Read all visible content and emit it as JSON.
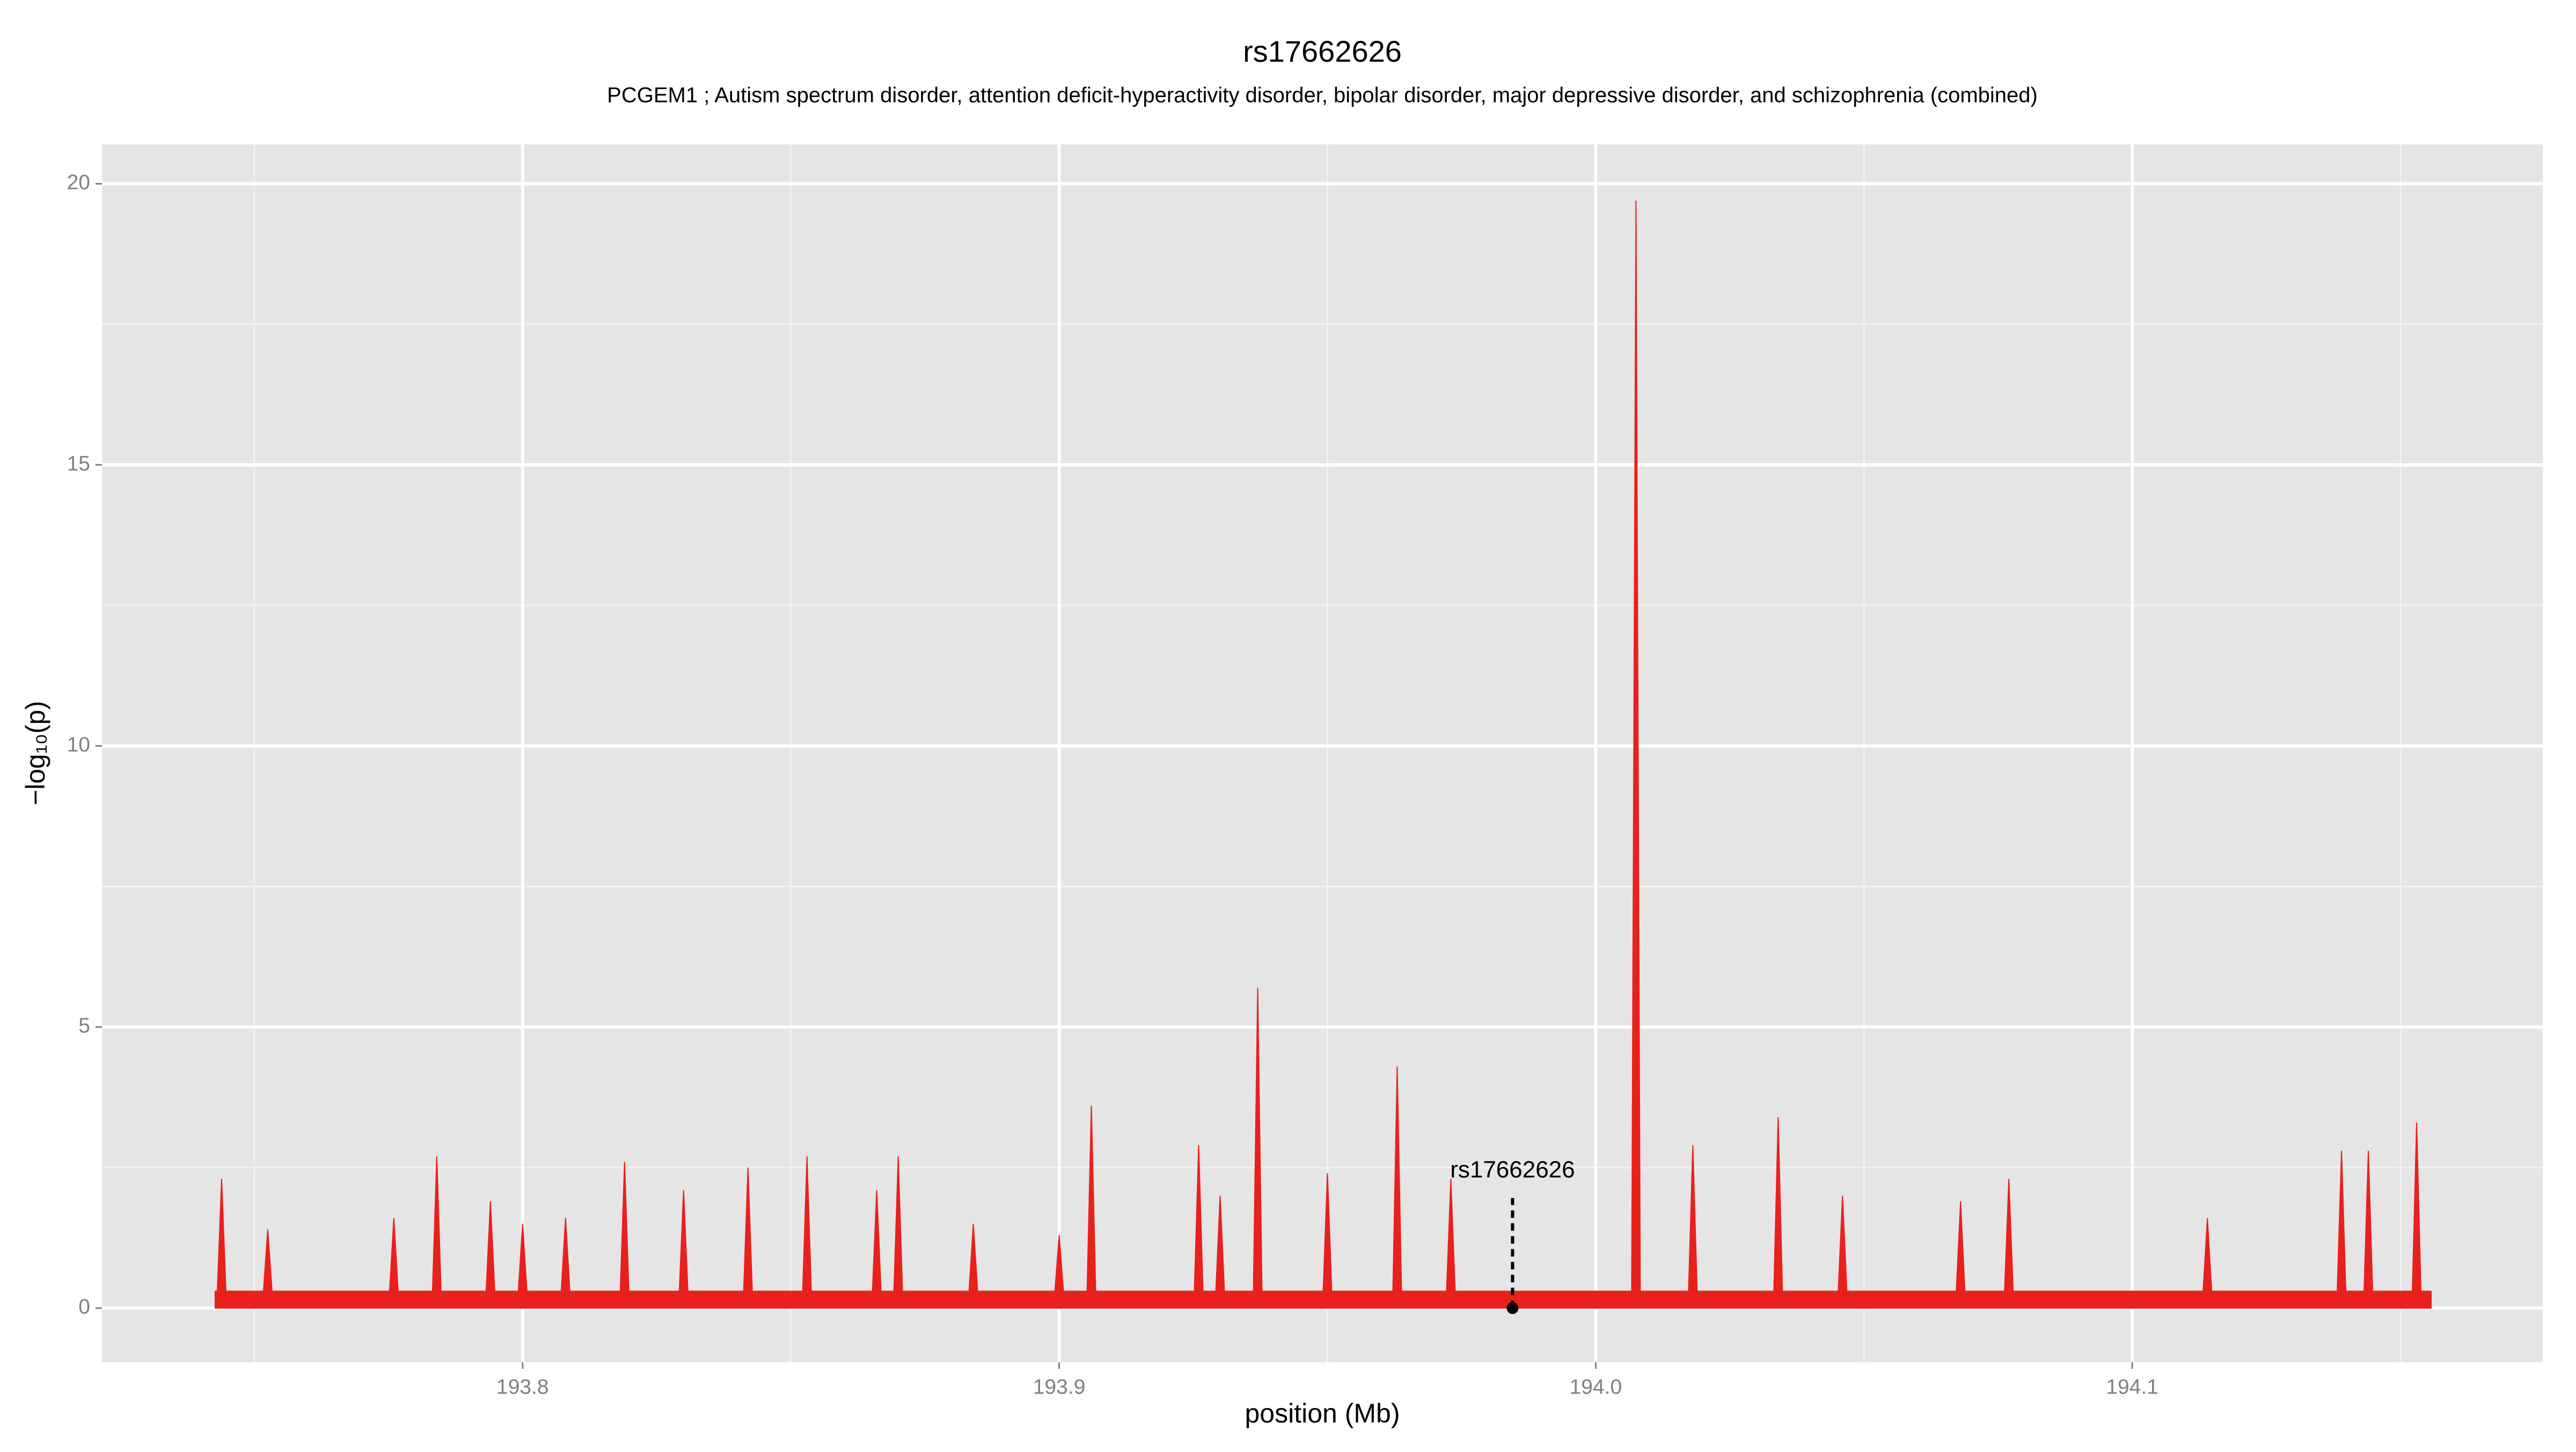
{
  "chart_data": {
    "type": "area",
    "title": "rs17662626",
    "subtitle": "PCGEM1 ; Autism spectrum disorder, attention deficit-hyperactivity disorder, bipolar disorder, major depressive disorder, and schizophrenia (combined)",
    "xlabel": "position (Mb)",
    "ylabel": "−log₁₀(p)",
    "xlim": [
      193.7216,
      194.1765
    ],
    "ylim": [
      -0.965,
      20.7
    ],
    "xticks": [
      193.8,
      193.9,
      {
        "value": 194,
        "label": "194.0"
      },
      194.1
    ],
    "yticks": [
      0,
      5,
      10,
      15,
      20
    ],
    "grid": true,
    "series": [
      {
        "color": "#e8211d",
        "x": [
          193.7427,
          193.7431,
          193.7439,
          193.7447,
          193.7517,
          193.7525,
          193.7533,
          193.7752,
          193.776,
          193.7768,
          193.7832,
          193.784,
          193.7848,
          193.7932,
          193.794,
          193.7948,
          193.7992,
          193.8,
          193.8008,
          193.8072,
          193.808,
          193.8088,
          193.8182,
          193.819,
          193.8198,
          193.8292,
          193.83,
          193.8308,
          193.8412,
          193.842,
          193.8428,
          193.8522,
          193.853,
          193.8538,
          193.8652,
          193.866,
          193.8668,
          193.8692,
          193.87,
          193.8708,
          193.8832,
          193.884,
          193.8848,
          193.8992,
          193.9,
          193.9008,
          193.9052,
          193.906,
          193.9068,
          193.9252,
          193.926,
          193.9268,
          193.9292,
          193.93,
          193.9308,
          193.9362,
          193.937,
          193.9378,
          193.9492,
          193.95,
          193.9508,
          193.9622,
          193.963,
          193.9638,
          193.9722,
          193.973,
          193.9738,
          194.0067,
          194.0075,
          194.0083,
          194.0173,
          194.0181,
          194.0189,
          194.0332,
          194.034,
          194.0348,
          194.0452,
          194.046,
          194.0468,
          194.0672,
          194.068,
          194.0688,
          194.0762,
          194.077,
          194.0778,
          194.1132,
          194.114,
          194.1148,
          194.1382,
          194.139,
          194.1398,
          194.1432,
          194.144,
          194.1448,
          194.1522,
          194.153,
          194.1538,
          194.1557
        ],
        "values": [
          0.3,
          0.3,
          2.3,
          0.3,
          0.3,
          1.4,
          0.3,
          0.3,
          1.6,
          0.3,
          0.3,
          2.7,
          0.3,
          0.3,
          1.9,
          0.3,
          0.3,
          1.5,
          0.3,
          0.3,
          1.6,
          0.3,
          0.3,
          2.6,
          0.3,
          0.3,
          2.1,
          0.3,
          0.3,
          2.5,
          0.3,
          0.3,
          2.7,
          0.3,
          0.3,
          2.1,
          0.3,
          0.3,
          2.7,
          0.3,
          0.3,
          1.5,
          0.3,
          0.3,
          1.3,
          0.3,
          0.3,
          3.6,
          0.3,
          0.3,
          2.9,
          0.3,
          0.3,
          2.0,
          0.3,
          0.3,
          5.7,
          0.3,
          0.3,
          2.4,
          0.3,
          0.3,
          4.3,
          0.3,
          0.3,
          2.3,
          0.3,
          0.3,
          19.7,
          0.3,
          0.3,
          2.9,
          0.3,
          0.3,
          3.4,
          0.3,
          0.3,
          2.0,
          0.3,
          0.3,
          1.9,
          0.3,
          0.3,
          2.3,
          0.3,
          0.3,
          1.6,
          0.3,
          0.3,
          2.8,
          0.3,
          0.3,
          2.8,
          0.3,
          0.3,
          3.3,
          0.3,
          0.3
        ]
      }
    ],
    "annotation": {
      "label": "rs17662626",
      "x": 193.9845,
      "y": 0
    }
  }
}
